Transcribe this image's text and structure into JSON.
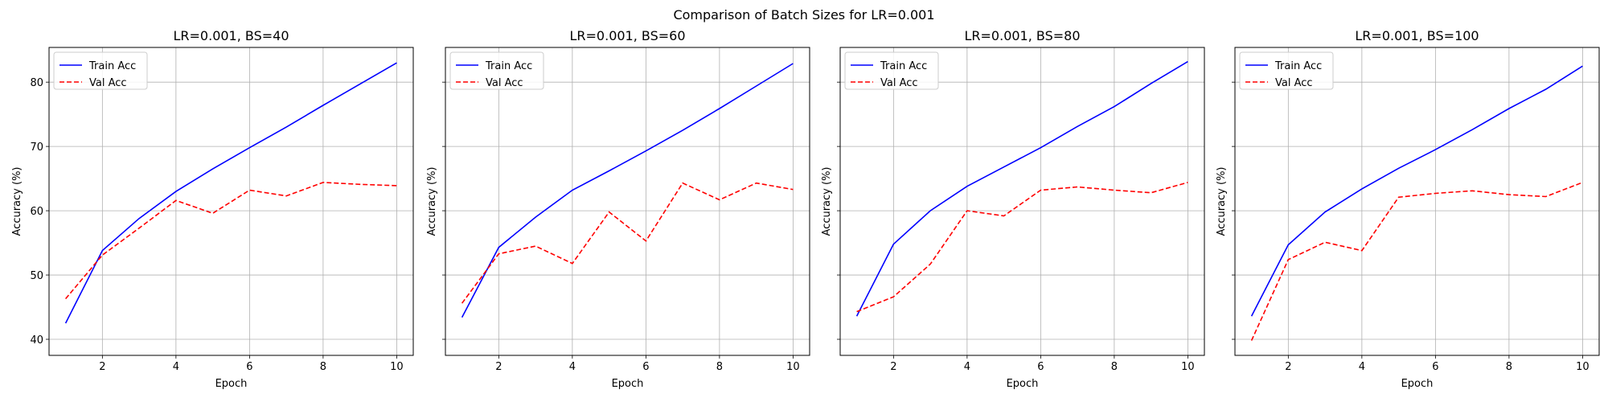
{
  "figure": {
    "suptitle": "Comparison of Batch Sizes for LR=0.001"
  },
  "chart_data": [
    {
      "type": "line",
      "title": "LR=0.001, BS=40",
      "xlabel": "Epoch",
      "ylabel": "Accuracy (%)",
      "x": [
        1,
        2,
        3,
        4,
        5,
        6,
        7,
        8,
        9,
        10
      ],
      "xticks": [
        2,
        4,
        6,
        8,
        10
      ],
      "yticks": [
        40,
        50,
        60,
        70,
        80
      ],
      "xlim": [
        0.55,
        10.45
      ],
      "ylim": [
        37.5,
        85.4
      ],
      "grid": true,
      "legend_position": "top-left",
      "series": [
        {
          "name": "Train Acc",
          "style": "solid",
          "color": "#0000ff",
          "values": [
            42.5,
            53.8,
            58.8,
            63.0,
            66.5,
            69.8,
            73.0,
            76.4,
            79.7,
            83.0
          ]
        },
        {
          "name": "Val Acc",
          "style": "dashed",
          "color": "#ff0000",
          "values": [
            46.3,
            53.1,
            57.3,
            61.6,
            59.6,
            63.2,
            62.3,
            64.4,
            64.1,
            63.9
          ]
        }
      ]
    },
    {
      "type": "line",
      "title": "LR=0.001, BS=60",
      "xlabel": "Epoch",
      "ylabel": "Accuracy (%)",
      "x": [
        1,
        2,
        3,
        4,
        5,
        6,
        7,
        8,
        9,
        10
      ],
      "xticks": [
        2,
        4,
        6,
        8,
        10
      ],
      "yticks": [
        40,
        50,
        60,
        70,
        80
      ],
      "xlim": [
        0.55,
        10.45
      ],
      "ylim": [
        37.5,
        85.4
      ],
      "grid": true,
      "legend_position": "top-left",
      "series": [
        {
          "name": "Train Acc",
          "style": "solid",
          "color": "#0000ff",
          "values": [
            43.4,
            54.3,
            59.0,
            63.2,
            66.2,
            69.3,
            72.5,
            75.9,
            79.4,
            82.9
          ]
        },
        {
          "name": "Val Acc",
          "style": "dashed",
          "color": "#ff0000",
          "values": [
            45.6,
            53.3,
            54.5,
            51.8,
            59.8,
            55.3,
            64.3,
            61.7,
            64.3,
            63.3
          ]
        }
      ]
    },
    {
      "type": "line",
      "title": "LR=0.001, BS=80",
      "xlabel": "Epoch",
      "ylabel": "Accuracy (%)",
      "x": [
        1,
        2,
        3,
        4,
        5,
        6,
        7,
        8,
        9,
        10
      ],
      "xticks": [
        2,
        4,
        6,
        8,
        10
      ],
      "yticks": [
        40,
        50,
        60,
        70,
        80
      ],
      "xlim": [
        0.55,
        10.45
      ],
      "ylim": [
        37.5,
        85.4
      ],
      "grid": true,
      "legend_position": "top-left",
      "series": [
        {
          "name": "Train Acc",
          "style": "solid",
          "color": "#0000ff",
          "values": [
            43.6,
            54.8,
            60.0,
            63.8,
            66.8,
            69.8,
            73.1,
            76.2,
            79.8,
            83.2
          ]
        },
        {
          "name": "Val Acc",
          "style": "dashed",
          "color": "#ff0000",
          "values": [
            44.3,
            46.6,
            51.7,
            60.0,
            59.2,
            63.2,
            63.7,
            63.2,
            62.8,
            64.4
          ]
        }
      ]
    },
    {
      "type": "line",
      "title": "LR=0.001, BS=100",
      "xlabel": "Epoch",
      "ylabel": "Accuracy (%)",
      "x": [
        1,
        2,
        3,
        4,
        5,
        6,
        7,
        8,
        9,
        10
      ],
      "xticks": [
        2,
        4,
        6,
        8,
        10
      ],
      "yticks": [
        40,
        50,
        60,
        70,
        80
      ],
      "xlim": [
        0.55,
        10.45
      ],
      "ylim": [
        37.5,
        85.4
      ],
      "grid": true,
      "legend_position": "top-left",
      "series": [
        {
          "name": "Train Acc",
          "style": "solid",
          "color": "#0000ff",
          "values": [
            43.6,
            54.7,
            59.8,
            63.4,
            66.6,
            69.5,
            72.6,
            75.9,
            78.9,
            82.5
          ]
        },
        {
          "name": "Val Acc",
          "style": "dashed",
          "color": "#ff0000",
          "values": [
            39.8,
            52.4,
            55.1,
            53.8,
            62.1,
            62.7,
            63.1,
            62.5,
            62.2,
            64.4
          ]
        }
      ]
    }
  ]
}
